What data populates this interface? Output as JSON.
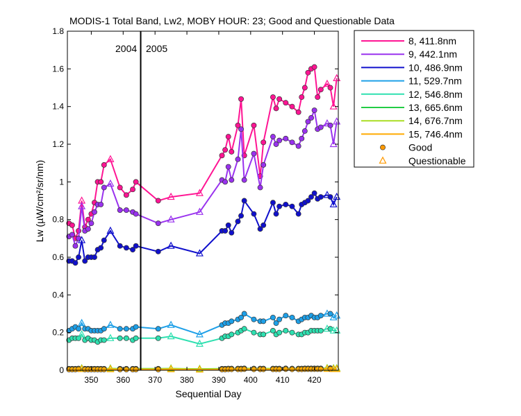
{
  "chart_data": {
    "type": "line",
    "title": "MODIS-1 Total Band,  Lw2, MOBY HOUR: 23;  Good and Questionable Data",
    "xlabel": "Sequential Day",
    "ylabel": "Lw (µW/cm²/sr/nm)",
    "xlim": [
      342.5,
      427.5
    ],
    "ylim": [
      0,
      1.8
    ],
    "xticks": [
      350,
      360,
      370,
      380,
      390,
      400,
      410,
      420
    ],
    "xtick_labels": [
      "350",
      "360",
      "370",
      "380",
      "390",
      "400",
      "410",
      "420"
    ],
    "yticks": [
      0,
      0.2,
      0.4,
      0.6,
      0.8,
      1,
      1.2,
      1.4,
      1.6,
      1.8
    ],
    "ytick_labels": [
      "0",
      "0.2",
      "0.4",
      "0.6",
      "0.8",
      "1",
      "1.2",
      "1.4",
      "1.6",
      "1.8"
    ],
    "grid": false,
    "legend_position": "outside-right",
    "year_divider": {
      "x": 365.5,
      "left_label": "2004",
      "right_label": "2005"
    },
    "markers": [
      {
        "label": "Good",
        "shape": "circle",
        "color": "#ff9900"
      },
      {
        "label": "Questionable",
        "shape": "triangle",
        "color": "#ff9900"
      }
    ],
    "series": [
      {
        "name": "8, 411.8nm",
        "color": "#ff1493",
        "x": [
          343,
          344,
          345,
          346,
          347,
          348,
          349,
          350,
          351,
          352,
          353,
          354,
          356,
          359,
          361,
          363,
          364,
          371,
          375,
          384,
          391,
          392,
          393,
          394,
          396,
          397,
          398,
          401,
          403,
          404,
          407,
          408,
          409,
          411,
          413,
          415,
          416,
          417,
          418,
          419,
          420,
          421,
          422,
          424,
          425,
          426,
          427
        ],
        "y": [
          0.78,
          0.77,
          0.7,
          0.74,
          0.9,
          0.76,
          0.8,
          0.83,
          0.89,
          1.0,
          1.0,
          1.09,
          1.12,
          0.97,
          0.93,
          0.96,
          1.0,
          0.9,
          0.92,
          0.94,
          1.14,
          1.17,
          1.24,
          1.16,
          1.3,
          1.44,
          1.14,
          1.3,
          1.03,
          1.21,
          1.45,
          1.39,
          1.44,
          1.42,
          1.4,
          1.37,
          1.45,
          1.5,
          1.58,
          1.6,
          1.61,
          1.45,
          1.49,
          1.52,
          1.5,
          1.4,
          1.55
        ],
        "q": [
          0,
          0,
          0,
          0,
          1,
          0,
          0,
          0,
          0,
          0,
          0,
          0,
          1,
          0,
          0,
          0,
          0,
          0,
          1,
          1,
          0,
          0,
          0,
          0,
          0,
          0,
          0,
          0,
          0,
          0,
          0,
          0,
          0,
          0,
          0,
          0,
          0,
          0,
          0,
          0,
          0,
          0,
          0,
          1,
          0,
          1,
          1
        ]
      },
      {
        "name": "9, 442.1nm",
        "color": "#9932ee",
        "x": [
          343,
          344,
          345,
          346,
          347,
          348,
          349,
          350,
          351,
          352,
          353,
          354,
          356,
          359,
          361,
          363,
          364,
          371,
          375,
          384,
          391,
          392,
          393,
          394,
          396,
          397,
          398,
          401,
          403,
          404,
          407,
          408,
          409,
          411,
          413,
          415,
          416,
          417,
          418,
          419,
          420,
          421,
          422,
          424,
          425,
          426,
          427
        ],
        "y": [
          0.71,
          0.72,
          0.66,
          0.7,
          0.87,
          0.74,
          0.75,
          0.78,
          0.84,
          0.88,
          0.88,
          0.97,
          0.99,
          0.85,
          0.85,
          0.84,
          0.83,
          0.78,
          0.8,
          0.84,
          1.01,
          1.0,
          1.08,
          1.01,
          1.12,
          1.28,
          1.01,
          1.15,
          0.97,
          1.09,
          1.24,
          1.2,
          1.22,
          1.23,
          1.21,
          1.19,
          1.23,
          1.27,
          1.32,
          1.34,
          1.38,
          1.28,
          1.29,
          1.31,
          1.3,
          1.2,
          1.32
        ],
        "q": [
          0,
          0,
          0,
          0,
          1,
          0,
          0,
          0,
          0,
          0,
          0,
          0,
          1,
          0,
          0,
          0,
          0,
          0,
          1,
          1,
          0,
          0,
          0,
          0,
          0,
          0,
          0,
          0,
          0,
          0,
          0,
          0,
          0,
          0,
          0,
          0,
          0,
          0,
          0,
          0,
          0,
          0,
          0,
          1,
          0,
          1,
          1
        ]
      },
      {
        "name": "10, 486.9nm",
        "color": "#1010cc",
        "x": [
          343,
          344,
          345,
          346,
          347,
          348,
          349,
          350,
          351,
          352,
          353,
          354,
          356,
          359,
          361,
          363,
          364,
          371,
          375,
          384,
          391,
          392,
          393,
          394,
          396,
          397,
          398,
          401,
          403,
          404,
          407,
          408,
          409,
          411,
          413,
          415,
          416,
          417,
          418,
          419,
          420,
          421,
          422,
          424,
          425,
          426,
          427
        ],
        "y": [
          0.58,
          0.58,
          0.57,
          0.6,
          0.69,
          0.58,
          0.6,
          0.6,
          0.6,
          0.64,
          0.65,
          0.69,
          0.74,
          0.66,
          0.65,
          0.64,
          0.66,
          0.63,
          0.66,
          0.62,
          0.74,
          0.74,
          0.77,
          0.73,
          0.79,
          0.82,
          0.9,
          0.83,
          0.75,
          0.77,
          0.89,
          0.83,
          0.87,
          0.88,
          0.87,
          0.83,
          0.88,
          0.89,
          0.9,
          0.92,
          0.94,
          0.91,
          0.92,
          0.93,
          0.92,
          0.88,
          0.92
        ],
        "q": [
          0,
          0,
          0,
          0,
          1,
          0,
          0,
          0,
          0,
          0,
          0,
          0,
          1,
          0,
          0,
          0,
          0,
          0,
          1,
          1,
          0,
          0,
          0,
          0,
          0,
          0,
          0,
          0,
          0,
          0,
          0,
          0,
          0,
          0,
          0,
          0,
          0,
          0,
          0,
          0,
          0,
          0,
          0,
          1,
          0,
          1,
          1
        ]
      },
      {
        "name": "11, 529.7nm",
        "color": "#1ea0e8",
        "x": [
          343,
          344,
          345,
          346,
          347,
          348,
          349,
          350,
          351,
          352,
          353,
          354,
          356,
          359,
          361,
          363,
          364,
          371,
          375,
          384,
          391,
          392,
          393,
          394,
          396,
          397,
          398,
          401,
          403,
          404,
          407,
          408,
          409,
          411,
          413,
          415,
          416,
          417,
          418,
          419,
          420,
          421,
          422,
          424,
          425,
          426,
          427
        ],
        "y": [
          0.21,
          0.22,
          0.23,
          0.22,
          0.25,
          0.22,
          0.22,
          0.21,
          0.21,
          0.21,
          0.21,
          0.22,
          0.24,
          0.22,
          0.22,
          0.22,
          0.23,
          0.22,
          0.24,
          0.19,
          0.24,
          0.25,
          0.25,
          0.26,
          0.27,
          0.28,
          0.3,
          0.27,
          0.26,
          0.26,
          0.28,
          0.25,
          0.27,
          0.29,
          0.28,
          0.26,
          0.27,
          0.28,
          0.28,
          0.29,
          0.28,
          0.28,
          0.29,
          0.3,
          0.3,
          0.28,
          0.29
        ],
        "q": [
          0,
          0,
          0,
          0,
          1,
          0,
          0,
          0,
          0,
          0,
          0,
          0,
          1,
          0,
          0,
          0,
          0,
          0,
          1,
          1,
          0,
          0,
          0,
          0,
          0,
          0,
          0,
          0,
          0,
          0,
          0,
          0,
          0,
          0,
          0,
          0,
          0,
          0,
          0,
          0,
          0,
          0,
          0,
          1,
          0,
          1,
          1
        ]
      },
      {
        "name": "12, 546.8nm",
        "color": "#2ee0b0",
        "x": [
          343,
          344,
          345,
          346,
          347,
          348,
          349,
          350,
          351,
          352,
          353,
          354,
          356,
          359,
          361,
          363,
          364,
          371,
          375,
          384,
          391,
          392,
          393,
          394,
          396,
          397,
          398,
          401,
          403,
          404,
          407,
          408,
          409,
          411,
          413,
          415,
          416,
          417,
          418,
          419,
          420,
          421,
          422,
          424,
          425,
          426,
          427
        ],
        "y": [
          0.16,
          0.17,
          0.17,
          0.17,
          0.19,
          0.16,
          0.17,
          0.16,
          0.16,
          0.15,
          0.16,
          0.16,
          0.17,
          0.17,
          0.17,
          0.16,
          0.17,
          0.17,
          0.18,
          0.14,
          0.17,
          0.18,
          0.18,
          0.19,
          0.2,
          0.21,
          0.22,
          0.2,
          0.19,
          0.19,
          0.21,
          0.19,
          0.2,
          0.21,
          0.2,
          0.19,
          0.19,
          0.2,
          0.2,
          0.21,
          0.21,
          0.21,
          0.21,
          0.22,
          0.22,
          0.21,
          0.21
        ],
        "q": [
          0,
          0,
          0,
          0,
          1,
          0,
          0,
          0,
          0,
          0,
          0,
          0,
          1,
          0,
          0,
          0,
          0,
          0,
          1,
          1,
          0,
          0,
          0,
          0,
          0,
          0,
          0,
          0,
          0,
          0,
          0,
          0,
          0,
          0,
          0,
          0,
          0,
          0,
          0,
          0,
          0,
          0,
          0,
          1,
          0,
          1,
          1
        ]
      },
      {
        "name": "13, 665.6nm",
        "color": "#22cc44",
        "x": [
          343,
          344,
          345,
          346,
          347,
          348,
          349,
          350,
          351,
          352,
          353,
          354,
          356,
          359,
          361,
          363,
          364,
          371,
          375,
          384,
          391,
          392,
          393,
          394,
          396,
          397,
          398,
          401,
          403,
          404,
          407,
          408,
          409,
          411,
          413,
          415,
          416,
          417,
          418,
          419,
          420,
          421,
          422,
          424,
          425,
          426,
          427
        ],
        "y": [
          0.008,
          0.008,
          0.008,
          0.009,
          0.01,
          0.008,
          0.008,
          0.008,
          0.008,
          0.008,
          0.008,
          0.008,
          0.009,
          0.008,
          0.008,
          0.008,
          0.008,
          0.008,
          0.009,
          0.007,
          0.008,
          0.008,
          0.009,
          0.009,
          0.009,
          0.009,
          0.01,
          0.009,
          0.009,
          0.009,
          0.009,
          0.009,
          0.009,
          0.01,
          0.009,
          0.009,
          0.009,
          0.01,
          0.01,
          0.01,
          0.01,
          0.01,
          0.01,
          0.011,
          0.011,
          0.01,
          0.01
        ],
        "q": [
          0,
          0,
          0,
          0,
          1,
          0,
          0,
          0,
          0,
          0,
          0,
          0,
          1,
          0,
          0,
          0,
          0,
          0,
          1,
          1,
          0,
          0,
          0,
          0,
          0,
          0,
          0,
          0,
          0,
          0,
          0,
          0,
          0,
          0,
          0,
          0,
          0,
          0,
          0,
          0,
          0,
          0,
          0,
          1,
          0,
          1,
          1
        ]
      },
      {
        "name": "14, 676.7nm",
        "color": "#aadd22",
        "x": [
          343,
          344,
          345,
          346,
          347,
          348,
          349,
          350,
          351,
          352,
          353,
          354,
          356,
          359,
          361,
          363,
          364,
          371,
          375,
          384,
          391,
          392,
          393,
          394,
          396,
          397,
          398,
          401,
          403,
          404,
          407,
          408,
          409,
          411,
          413,
          415,
          416,
          417,
          418,
          419,
          420,
          421,
          422,
          424,
          425,
          426,
          427
        ],
        "y": [
          0.007,
          0.007,
          0.007,
          0.008,
          0.009,
          0.007,
          0.007,
          0.007,
          0.007,
          0.007,
          0.007,
          0.007,
          0.008,
          0.007,
          0.007,
          0.007,
          0.007,
          0.007,
          0.008,
          0.006,
          0.007,
          0.007,
          0.008,
          0.008,
          0.008,
          0.008,
          0.009,
          0.008,
          0.008,
          0.008,
          0.008,
          0.008,
          0.008,
          0.009,
          0.008,
          0.008,
          0.008,
          0.009,
          0.009,
          0.009,
          0.009,
          0.009,
          0.009,
          0.01,
          0.01,
          0.009,
          0.009
        ],
        "q": [
          0,
          0,
          0,
          0,
          1,
          0,
          0,
          0,
          0,
          0,
          0,
          0,
          1,
          0,
          0,
          0,
          0,
          0,
          1,
          1,
          0,
          0,
          0,
          0,
          0,
          0,
          0,
          0,
          0,
          0,
          0,
          0,
          0,
          0,
          0,
          0,
          0,
          0,
          0,
          0,
          0,
          0,
          0,
          1,
          0,
          1,
          1
        ]
      },
      {
        "name": "15, 746.4nm",
        "color": "#ffaa00",
        "x": [
          343,
          344,
          345,
          346,
          347,
          348,
          349,
          350,
          351,
          352,
          353,
          354,
          356,
          359,
          361,
          363,
          364,
          371,
          375,
          384,
          391,
          392,
          393,
          394,
          396,
          397,
          398,
          401,
          403,
          404,
          407,
          408,
          409,
          411,
          413,
          415,
          416,
          417,
          418,
          419,
          420,
          421,
          422,
          424,
          425,
          426,
          427
        ],
        "y": [
          0.004,
          0.004,
          0.004,
          0.005,
          0.006,
          0.004,
          0.004,
          0.004,
          0.004,
          0.004,
          0.004,
          0.004,
          0.005,
          0.004,
          0.004,
          0.004,
          0.004,
          0.004,
          0.005,
          0.003,
          0.004,
          0.004,
          0.005,
          0.005,
          0.005,
          0.005,
          0.006,
          0.005,
          0.005,
          0.005,
          0.005,
          0.005,
          0.005,
          0.006,
          0.005,
          0.005,
          0.005,
          0.006,
          0.006,
          0.006,
          0.006,
          0.006,
          0.006,
          0.007,
          0.007,
          0.006,
          0.006
        ],
        "q": [
          0,
          0,
          0,
          0,
          1,
          0,
          0,
          0,
          0,
          0,
          0,
          0,
          1,
          0,
          0,
          0,
          0,
          0,
          1,
          1,
          0,
          0,
          0,
          0,
          0,
          0,
          0,
          0,
          0,
          0,
          0,
          0,
          0,
          0,
          0,
          0,
          0,
          0,
          0,
          0,
          0,
          0,
          0,
          1,
          0,
          1,
          1
        ]
      }
    ]
  }
}
